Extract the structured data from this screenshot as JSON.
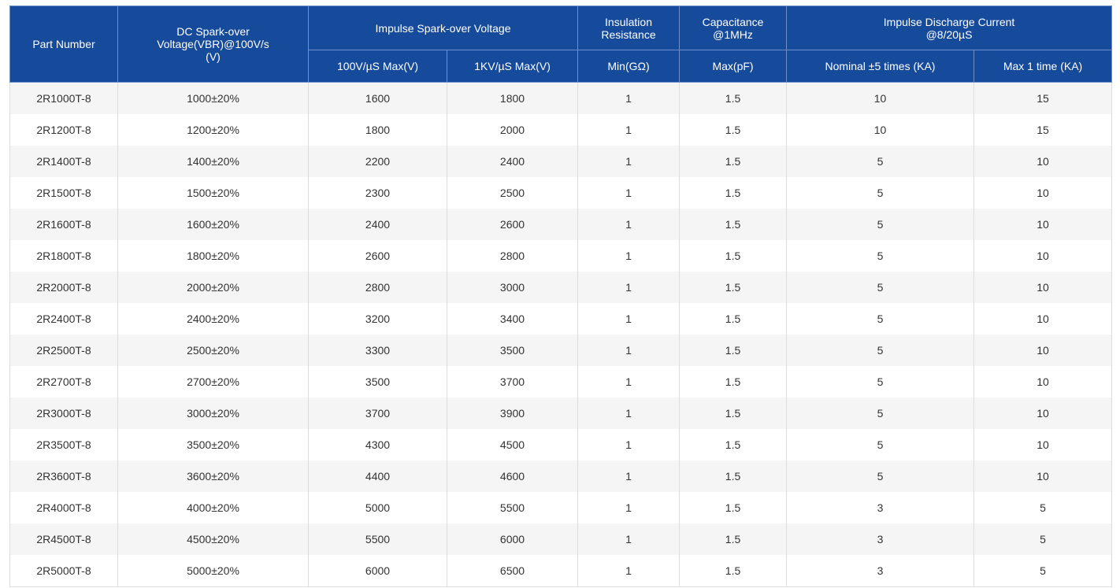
{
  "header": {
    "part_number": "Part Number",
    "dc_spark": "DC Spark-over\nVoltage(VBR)@100V/s\n(V)",
    "impulse_spark": "Impulse Spark-over Voltage",
    "insulation": "Insulation\nResistance",
    "capacitance": "Capacitance\n@1MHz",
    "discharge": "Impulse Discharge Current\n@8/20µS",
    "sub_100v": "100V/µS Max(V)",
    "sub_1kv": "1KV/µS Max(V)",
    "sub_min": "Min(GΩ)",
    "sub_max_pf": "Max(pF)",
    "sub_nominal": "Nominal ±5 times (KA)",
    "sub_max1": "Max 1 time (KA)"
  },
  "rows": [
    [
      "2R1000T-8",
      "1000±20%",
      "1600",
      "1800",
      "1",
      "1.5",
      "10",
      "15"
    ],
    [
      "2R1200T-8",
      "1200±20%",
      "1800",
      "2000",
      "1",
      "1.5",
      "10",
      "15"
    ],
    [
      "2R1400T-8",
      "1400±20%",
      "2200",
      "2400",
      "1",
      "1.5",
      "5",
      "10"
    ],
    [
      "2R1500T-8",
      "1500±20%",
      "2300",
      "2500",
      "1",
      "1.5",
      "5",
      "10"
    ],
    [
      "2R1600T-8",
      "1600±20%",
      "2400",
      "2600",
      "1",
      "1.5",
      "5",
      "10"
    ],
    [
      "2R1800T-8",
      "1800±20%",
      "2600",
      "2800",
      "1",
      "1.5",
      "5",
      "10"
    ],
    [
      "2R2000T-8",
      "2000±20%",
      "2800",
      "3000",
      "1",
      "1.5",
      "5",
      "10"
    ],
    [
      "2R2400T-8",
      "2400±20%",
      "3200",
      "3400",
      "1",
      "1.5",
      "5",
      "10"
    ],
    [
      "2R2500T-8",
      "2500±20%",
      "3300",
      "3500",
      "1",
      "1.5",
      "5",
      "10"
    ],
    [
      "2R2700T-8",
      "2700±20%",
      "3500",
      "3700",
      "1",
      "1.5",
      "5",
      "10"
    ],
    [
      "2R3000T-8",
      "3000±20%",
      "3700",
      "3900",
      "1",
      "1.5",
      "5",
      "10"
    ],
    [
      "2R3500T-8",
      "3500±20%",
      "4300",
      "4500",
      "1",
      "1.5",
      "5",
      "10"
    ],
    [
      "2R3600T-8",
      "3600±20%",
      "4400",
      "4600",
      "1",
      "1.5",
      "5",
      "10"
    ],
    [
      "2R4000T-8",
      "4000±20%",
      "5000",
      "5500",
      "1",
      "1.5",
      "3",
      "5"
    ],
    [
      "2R4500T-8",
      "4500±20%",
      "5500",
      "6000",
      "1",
      "1.5",
      "3",
      "5"
    ],
    [
      "2R5000T-8",
      "5000±20%",
      "6000",
      "6500",
      "1",
      "1.5",
      "3",
      "5"
    ]
  ],
  "colors": {
    "header_bg": "#164a9b",
    "header_text": "#ffffff",
    "row_stripe": "#f5f5f5",
    "row_plain": "#ffffff",
    "body_text": "#333333"
  }
}
